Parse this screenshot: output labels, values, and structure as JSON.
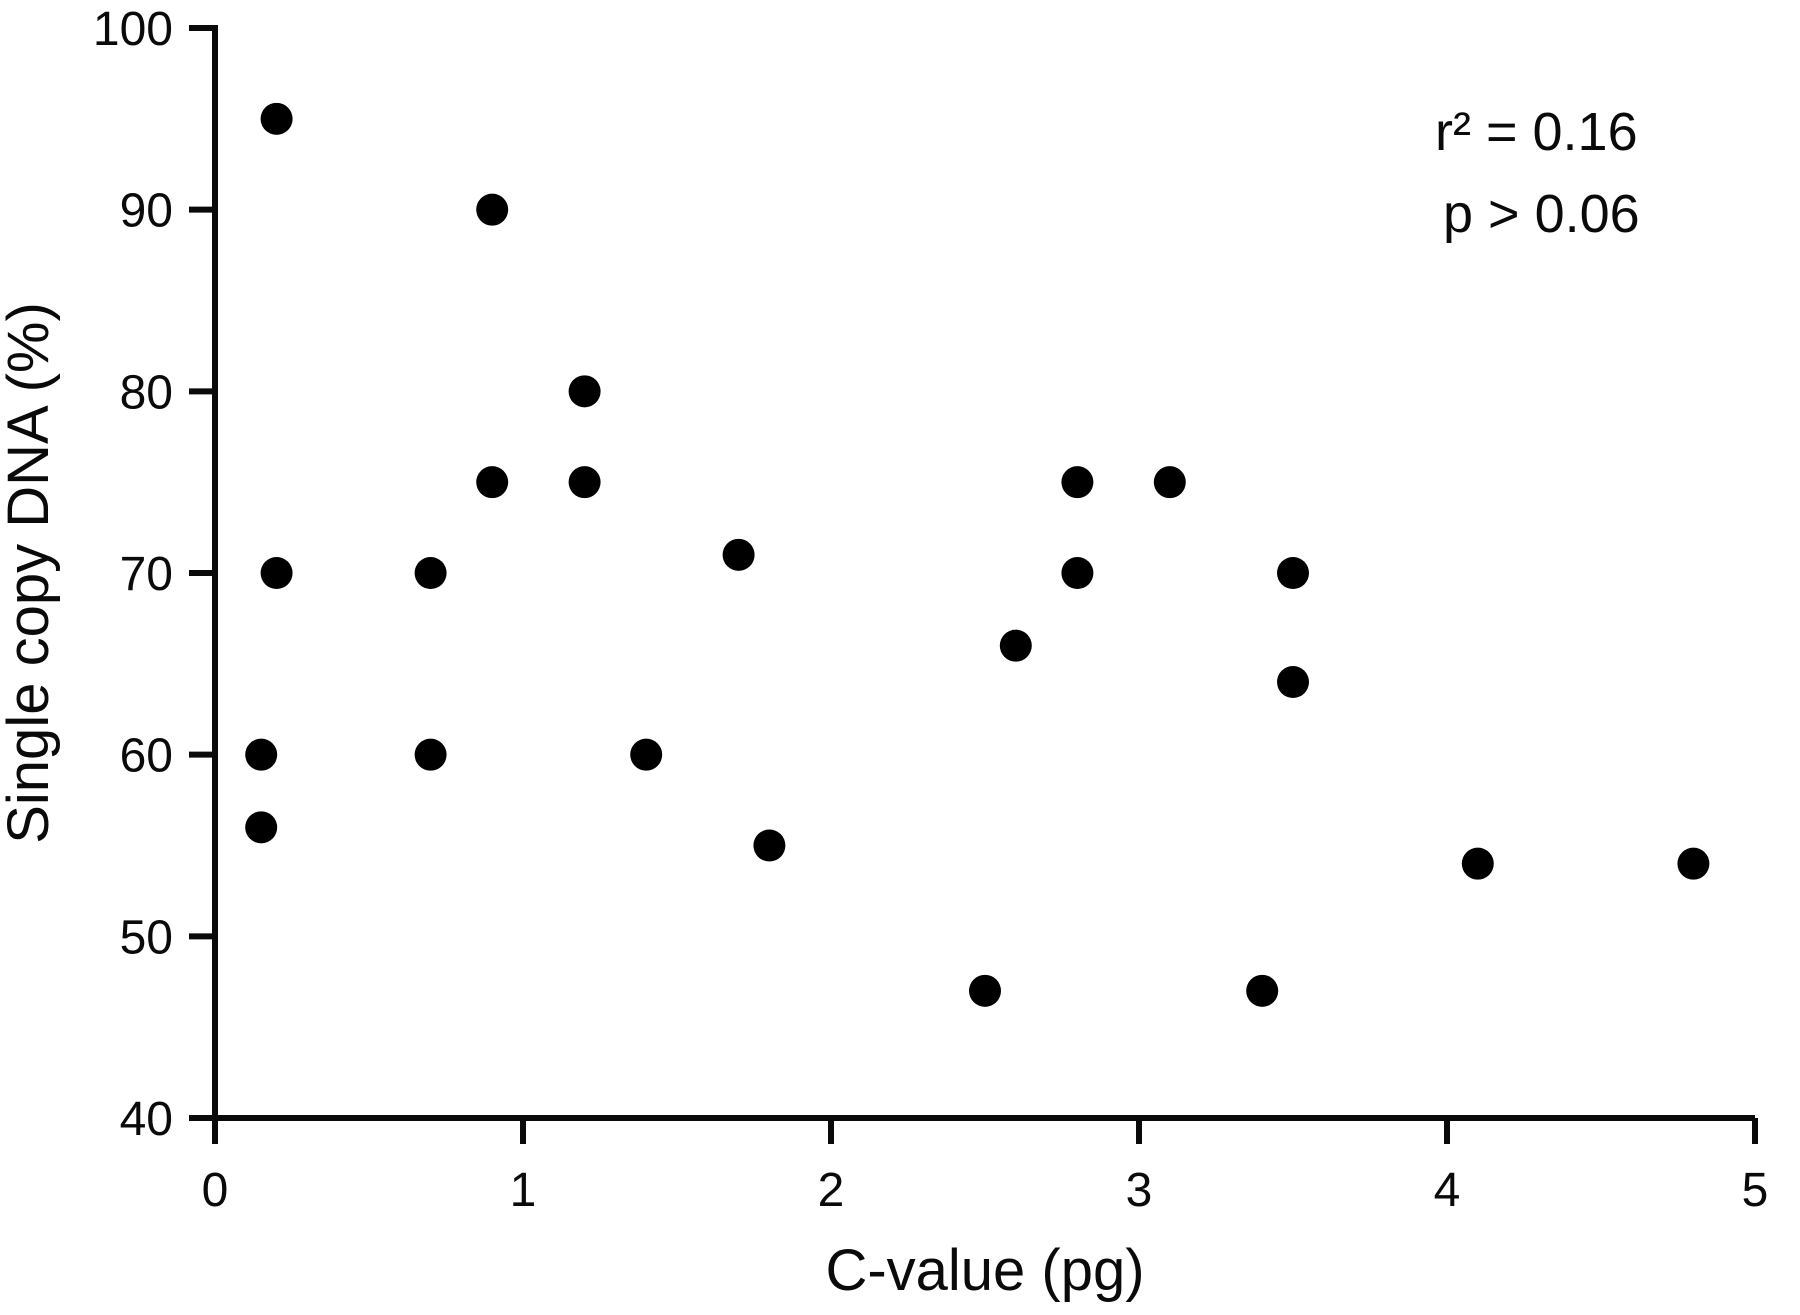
{
  "chart_data": {
    "type": "scatter",
    "title": "",
    "xlabel": "C-value (pg)",
    "ylabel": "Single copy DNA (%)",
    "xlim": [
      0,
      5
    ],
    "ylim": [
      40,
      100
    ],
    "xticks": [
      0,
      1,
      2,
      3,
      4,
      5
    ],
    "yticks": [
      40,
      50,
      60,
      70,
      80,
      90,
      100
    ],
    "grid": false,
    "legend": "none",
    "annotations": [
      "r² = 0.16",
      "p > 0.06"
    ],
    "marker": {
      "shape": "circle",
      "color": "#000000",
      "radius_px": 16
    },
    "points": [
      [
        0.2,
        95
      ],
      [
        0.9,
        90
      ],
      [
        1.2,
        80
      ],
      [
        0.9,
        75
      ],
      [
        1.2,
        75
      ],
      [
        2.8,
        75
      ],
      [
        3.1,
        75
      ],
      [
        1.7,
        71
      ],
      [
        0.2,
        70
      ],
      [
        0.7,
        70
      ],
      [
        2.8,
        70
      ],
      [
        3.5,
        70
      ],
      [
        2.6,
        66
      ],
      [
        3.5,
        64
      ],
      [
        0.15,
        60
      ],
      [
        0.7,
        60
      ],
      [
        1.4,
        60
      ],
      [
        0.15,
        56
      ],
      [
        1.8,
        55
      ],
      [
        4.1,
        54
      ],
      [
        4.8,
        54
      ],
      [
        2.5,
        47
      ],
      [
        3.4,
        47
      ]
    ]
  }
}
